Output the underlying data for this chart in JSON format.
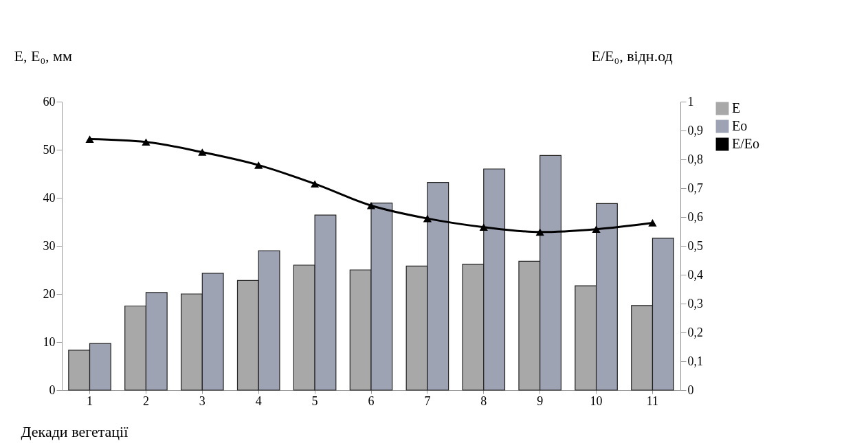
{
  "chart_data": {
    "type": "bar",
    "categories": [
      "1",
      "2",
      "3",
      "4",
      "5",
      "6",
      "7",
      "8",
      "9",
      "10",
      "11"
    ],
    "xlabel": "Декади вегетації",
    "ylabel": "E, E₀, мм",
    "y2label": "E/E₀, відн.од",
    "series": [
      {
        "name": "E",
        "color": "#a8a8a8",
        "values": [
          8.3,
          17.5,
          20.0,
          22.8,
          26.0,
          25.0,
          25.8,
          26.2,
          26.8,
          21.7,
          17.6
        ]
      },
      {
        "name": "Eo",
        "color": "#9ea3b4",
        "values": [
          9.7,
          20.3,
          24.3,
          29.0,
          36.4,
          38.9,
          43.2,
          46.0,
          48.8,
          38.8,
          31.6
        ]
      },
      {
        "name": "E/Eo",
        "type": "line",
        "axis": "y2",
        "color": "#000000",
        "marker": "triangle",
        "line_style": "solid",
        "values": [
          0.87,
          0.86,
          0.825,
          0.78,
          0.715,
          0.64,
          0.595,
          0.565,
          0.548,
          0.558,
          0.58
        ]
      }
    ],
    "ylim": [
      0,
      60
    ],
    "yticks": [
      0,
      10,
      20,
      30,
      40,
      50,
      60
    ],
    "y2lim": [
      0,
      1
    ],
    "y2ticks": [
      0,
      {
        "value": 0.1,
        "label": "0,1"
      },
      {
        "value": 0.2,
        "label": "0,2"
      },
      {
        "value": 0.3,
        "label": "0,3"
      },
      {
        "value": 0.4,
        "label": "0,4"
      },
      {
        "value": 0.5,
        "label": "0,5"
      },
      {
        "value": 0.6,
        "label": "0,6"
      },
      {
        "value": 0.7,
        "label": "0,7"
      },
      {
        "value": 0.8,
        "label": "0,8"
      },
      {
        "value": 0.9,
        "label": "0,9"
      },
      1
    ],
    "grid": false,
    "legend": "right"
  }
}
